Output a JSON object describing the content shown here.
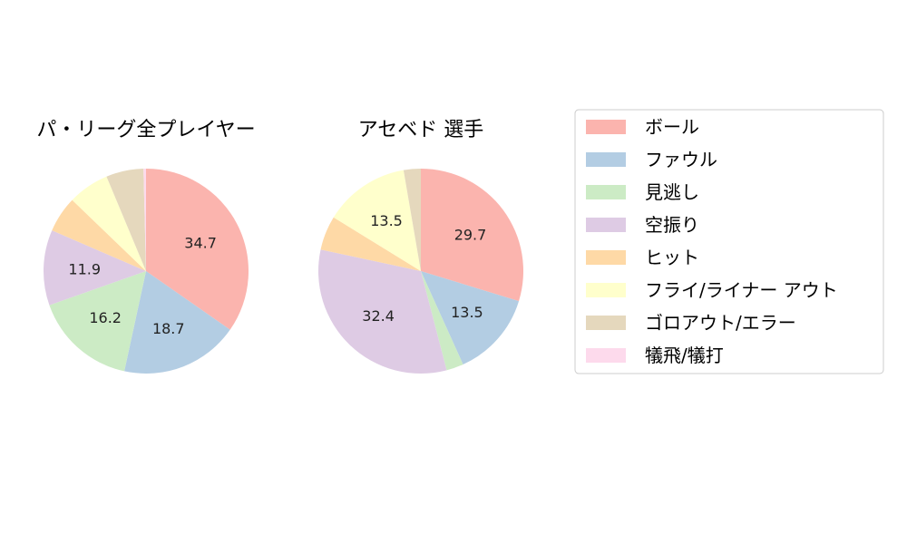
{
  "chart_data": [
    {
      "type": "pie",
      "title": "パ・リーグ全プレイヤー",
      "slices": [
        {
          "category": "ボール",
          "value": 34.7,
          "label": "34.7"
        },
        {
          "category": "ファウル",
          "value": 18.7,
          "label": "18.7"
        },
        {
          "category": "見逃し",
          "value": 16.2,
          "label": "16.2"
        },
        {
          "category": "空振り",
          "value": 11.9,
          "label": "11.9"
        },
        {
          "category": "ヒット",
          "value": 5.7,
          "label": ""
        },
        {
          "category": "フライ/ライナー アウト",
          "value": 6.5,
          "label": ""
        },
        {
          "category": "ゴロアウト/エラー",
          "value": 5.9,
          "label": ""
        },
        {
          "category": "犠飛/犠打",
          "value": 0.4,
          "label": ""
        }
      ]
    },
    {
      "type": "pie",
      "title": "アセベド  選手",
      "slices": [
        {
          "category": "ボール",
          "value": 29.7,
          "label": "29.7"
        },
        {
          "category": "ファウル",
          "value": 13.5,
          "label": "13.5"
        },
        {
          "category": "見逃し",
          "value": 2.7,
          "label": ""
        },
        {
          "category": "空振り",
          "value": 32.4,
          "label": "32.4"
        },
        {
          "category": "ヒット",
          "value": 5.4,
          "label": ""
        },
        {
          "category": "フライ/ライナー アウト",
          "value": 13.5,
          "label": "13.5"
        },
        {
          "category": "ゴロアウト/エラー",
          "value": 2.7,
          "label": ""
        },
        {
          "category": "犠飛/犠打",
          "value": 0.0,
          "label": ""
        }
      ]
    }
  ],
  "legend": {
    "placement": "right",
    "items": [
      {
        "label": "ボール",
        "color": "#fbb4ae"
      },
      {
        "label": "ファウル",
        "color": "#b3cde3"
      },
      {
        "label": "見逃し",
        "color": "#ccebc5"
      },
      {
        "label": "空振り",
        "color": "#decbe4"
      },
      {
        "label": "ヒット",
        "color": "#fed9a6"
      },
      {
        "label": "フライ/ライナー アウト",
        "color": "#ffffcc"
      },
      {
        "label": "ゴロアウト/エラー",
        "color": "#e5d8bd"
      },
      {
        "label": "犠飛/犠打",
        "color": "#fddaec"
      }
    ]
  }
}
